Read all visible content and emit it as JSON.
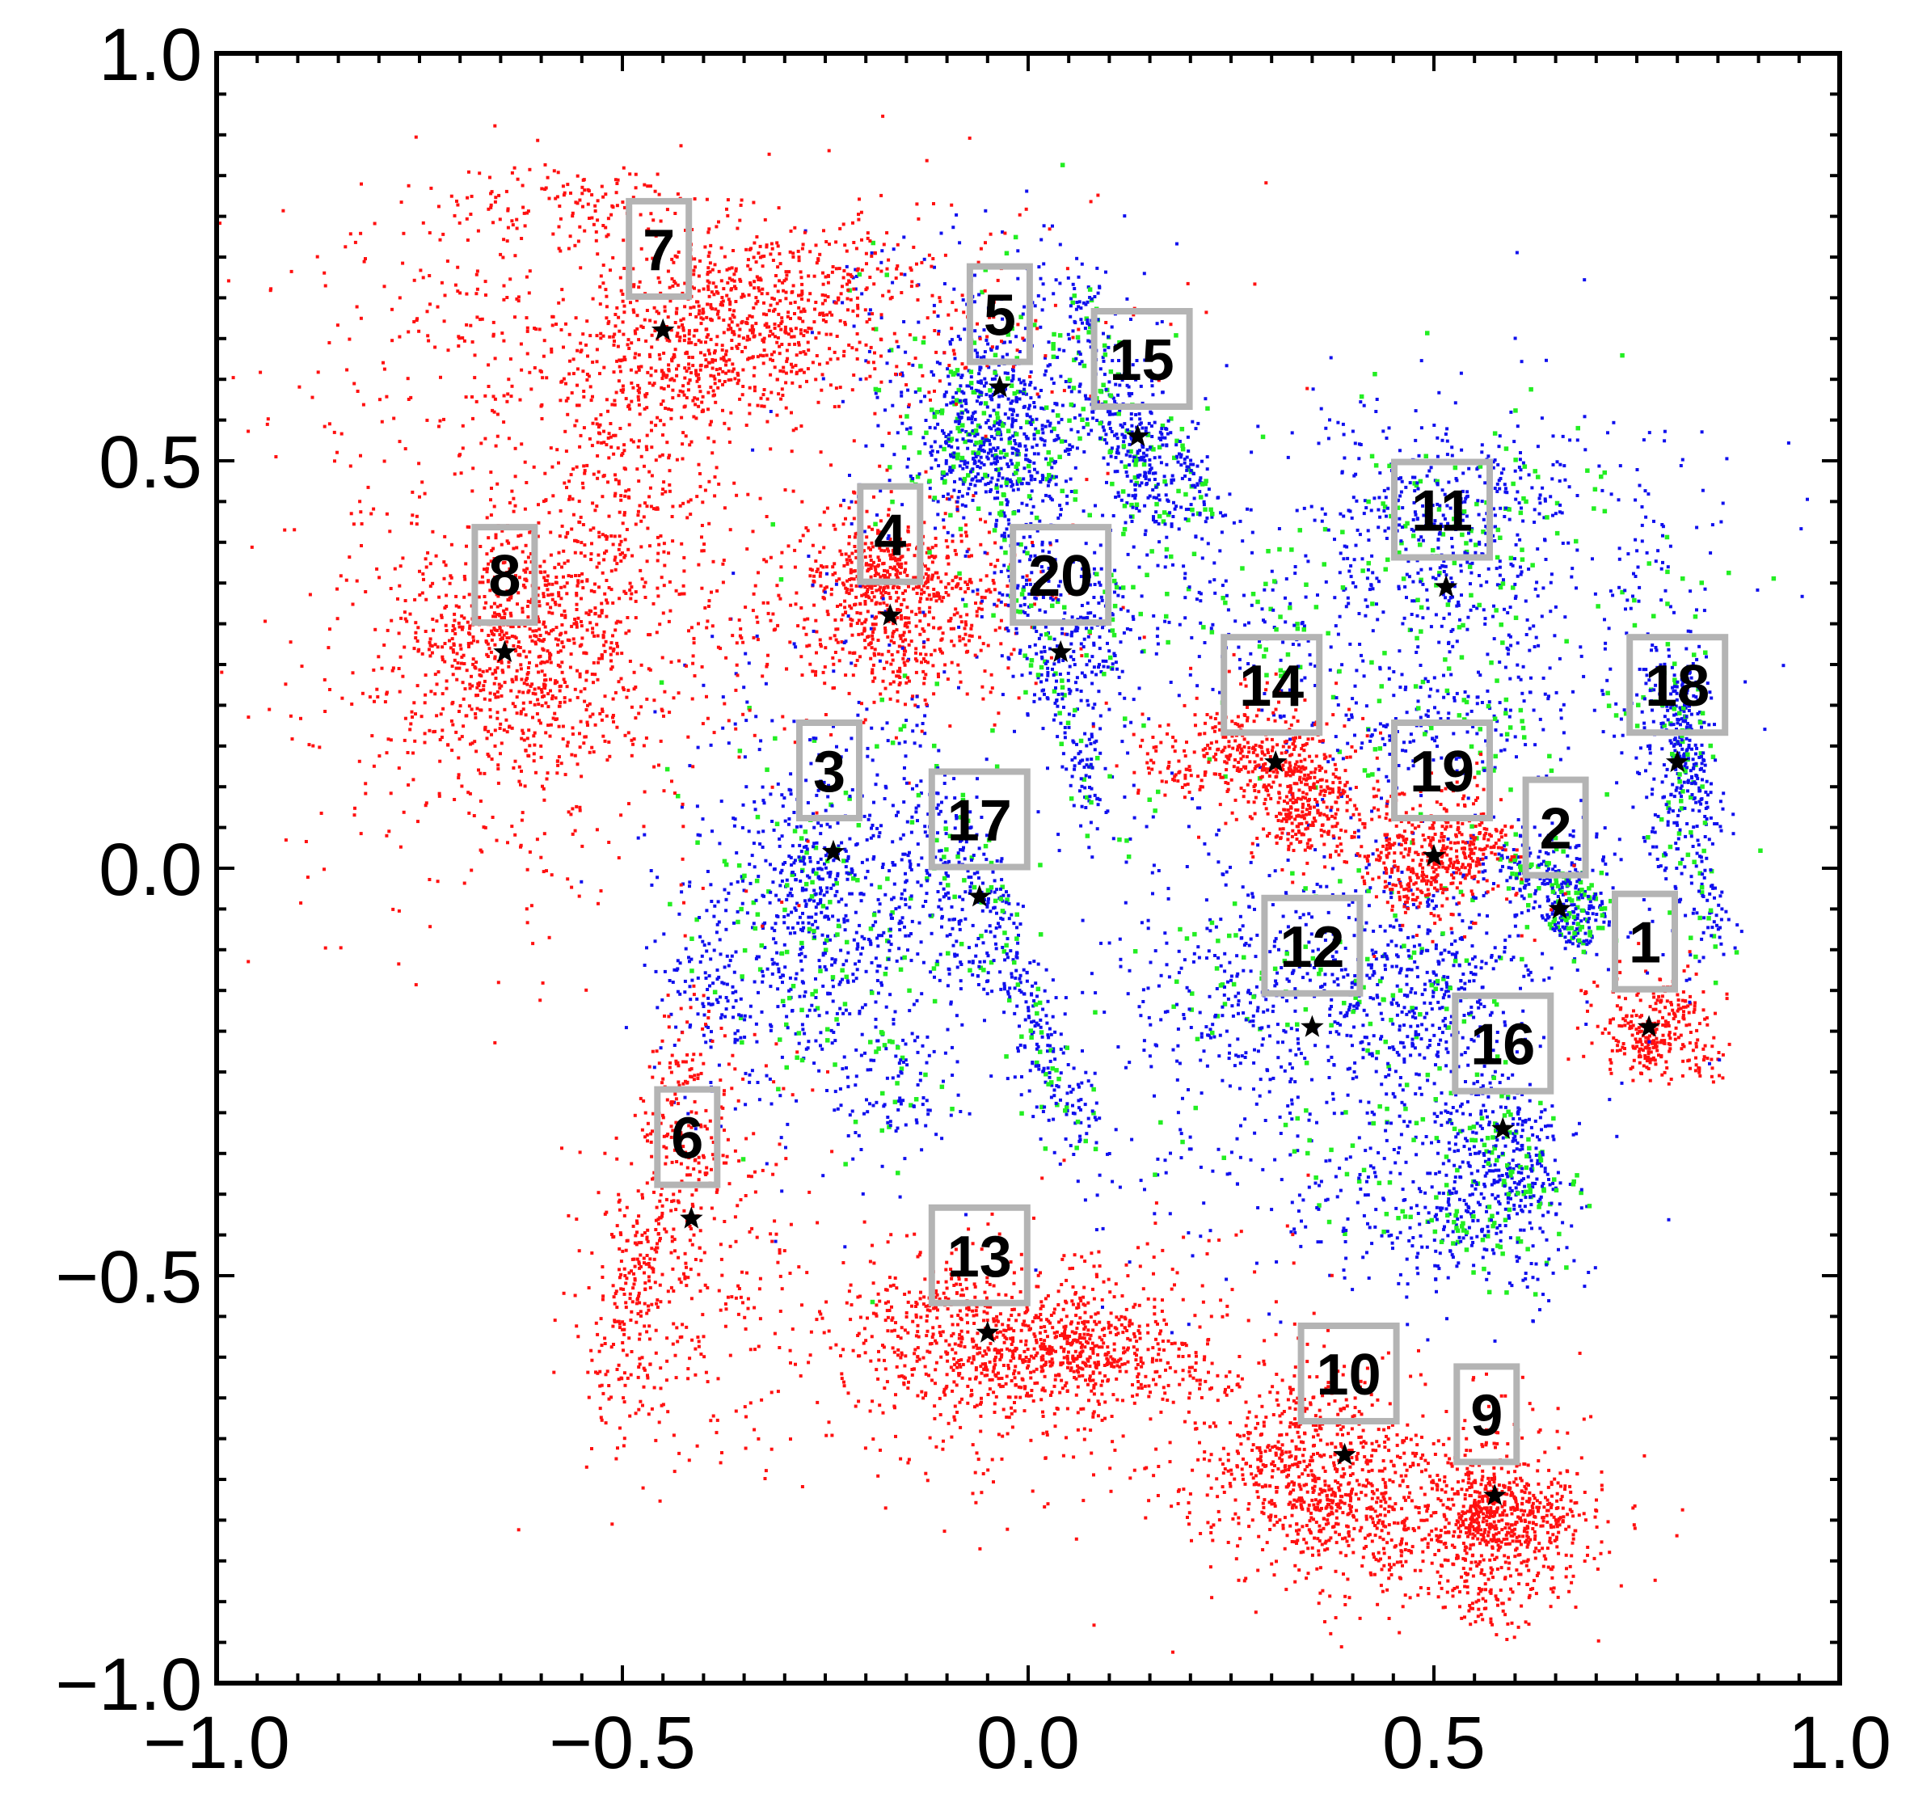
{
  "chart_data": {
    "type": "scatter",
    "title": "",
    "xlabel": "",
    "ylabel": "",
    "xlim": [
      -1.0,
      1.0
    ],
    "ylim": [
      -1.0,
      1.0
    ],
    "grid": false,
    "x_major_ticks": [
      -1.0,
      -0.5,
      0.0,
      0.5,
      1.0
    ],
    "y_major_ticks": [
      -1.0,
      -0.5,
      0.0,
      0.5,
      1.0
    ],
    "x_tick_labels": [
      "−1.0",
      "−0.5",
      "0.0",
      "0.5",
      "1.0"
    ],
    "y_tick_labels": [
      "−1.0",
      "−0.5",
      "0.0",
      "0.5",
      "1.0"
    ],
    "colors": {
      "red": "#ff1010",
      "blue": "#1010ee",
      "green": "#22ee22",
      "star": "#000000",
      "box": "#b4b4b4",
      "frame": "#000000"
    },
    "clusters": [
      {
        "label": "1",
        "center": [
          0.765,
          -0.192
        ],
        "star": [
          0.765,
          -0.195
        ],
        "label_pos": [
          0.76,
          -0.09
        ],
        "color": "red",
        "spread": [
          0.04,
          0.035
        ],
        "angle": -20,
        "n": 320,
        "green_frac": 0
      },
      {
        "label": "2",
        "center": [
          0.65,
          -0.03
        ],
        "star": [
          0.655,
          -0.05
        ],
        "label_pos": [
          0.65,
          0.05
        ],
        "color": "blue",
        "spread": [
          0.05,
          0.02
        ],
        "angle": -40,
        "n": 260,
        "green_frac": 0.35
      },
      {
        "label": "3",
        "center": [
          -0.25,
          -0.05
        ],
        "star": [
          -0.24,
          0.02
        ],
        "label_pos": [
          -0.245,
          0.12
        ],
        "color": "blue",
        "spread": [
          0.1,
          0.15
        ],
        "angle": 0,
        "n": 1100,
        "green_frac": 0.15
      },
      {
        "label": "4",
        "center": [
          -0.18,
          0.32
        ],
        "star": [
          -0.17,
          0.31
        ],
        "label_pos": [
          -0.17,
          0.41
        ],
        "color": "red",
        "spread": [
          0.1,
          0.07
        ],
        "angle": 0,
        "n": 850,
        "green_frac": 0
      },
      {
        "label": "5",
        "center": [
          -0.05,
          0.58
        ],
        "star": [
          -0.035,
          0.59
        ],
        "label_pos": [
          -0.035,
          0.68
        ],
        "color": "blue",
        "spread": [
          0.09,
          0.1
        ],
        "angle": 0,
        "n": 900,
        "green_frac": 0.2
      },
      {
        "label": "6",
        "center": [
          -0.43,
          -0.45
        ],
        "star": [
          -0.415,
          -0.43
        ],
        "label_pos": [
          -0.42,
          -0.33
        ],
        "color": "red",
        "spread": [
          0.06,
          0.14
        ],
        "angle": -15,
        "n": 600,
        "green_frac": 0
      },
      {
        "label": "7",
        "center": [
          -0.4,
          0.67
        ],
        "star": [
          -0.45,
          0.66
        ],
        "label_pos": [
          -0.455,
          0.76
        ],
        "color": "red",
        "spread": [
          0.24,
          0.08
        ],
        "angle": 0,
        "n": 1400,
        "green_frac": 0
      },
      {
        "label": "8",
        "center": [
          -0.63,
          0.28
        ],
        "star": [
          -0.645,
          0.265
        ],
        "label_pos": [
          -0.645,
          0.36
        ],
        "color": "red",
        "spread": [
          0.14,
          0.17
        ],
        "angle": 0,
        "n": 1500,
        "green_frac": 0
      },
      {
        "label": "9",
        "center": [
          0.57,
          -0.8
        ],
        "star": [
          0.575,
          -0.77
        ],
        "label_pos": [
          0.565,
          -0.67
        ],
        "color": "red",
        "spread": [
          0.08,
          0.06
        ],
        "angle": 0,
        "n": 800,
        "green_frac": 0
      },
      {
        "label": "10",
        "center": [
          0.38,
          -0.76
        ],
        "star": [
          0.39,
          -0.72
        ],
        "label_pos": [
          0.395,
          -0.62
        ],
        "color": "red",
        "spread": [
          0.11,
          0.07
        ],
        "angle": 0,
        "n": 900,
        "green_frac": 0
      },
      {
        "label": "11",
        "center": [
          0.52,
          0.38
        ],
        "star": [
          0.515,
          0.345
        ],
        "label_pos": [
          0.51,
          0.44
        ],
        "color": "blue",
        "spread": [
          0.17,
          0.12
        ],
        "angle": 0,
        "n": 1100,
        "green_frac": 0.2
      },
      {
        "label": "12",
        "center": [
          0.36,
          -0.17
        ],
        "star": [
          0.35,
          -0.195
        ],
        "label_pos": [
          0.35,
          -0.095
        ],
        "color": "blue",
        "spread": [
          0.16,
          0.14
        ],
        "angle": 0,
        "n": 1400,
        "green_frac": 0.12
      },
      {
        "label": "13",
        "center": [
          -0.03,
          -0.6
        ],
        "star": [
          -0.05,
          -0.57
        ],
        "label_pos": [
          -0.06,
          -0.475
        ],
        "color": "red",
        "spread": [
          0.18,
          0.08
        ],
        "angle": 0,
        "n": 1300,
        "green_frac": 0
      },
      {
        "label": "14",
        "center": [
          0.31,
          0.12
        ],
        "star": [
          0.305,
          0.13
        ],
        "label_pos": [
          0.3,
          0.225
        ],
        "color": "red",
        "spread": [
          0.07,
          0.05
        ],
        "angle": -30,
        "n": 650,
        "green_frac": 0
      },
      {
        "label": "15",
        "center": [
          0.13,
          0.51
        ],
        "star": [
          0.135,
          0.53
        ],
        "label_pos": [
          0.14,
          0.625
        ],
        "color": "blue",
        "spread": [
          0.035,
          0.1
        ],
        "angle": 20,
        "n": 500,
        "green_frac": 0.2
      },
      {
        "label": "16",
        "center": [
          0.57,
          -0.36
        ],
        "star": [
          0.585,
          -0.32
        ],
        "label_pos": [
          0.585,
          -0.215
        ],
        "color": "blue",
        "spread": [
          0.05,
          0.1
        ],
        "angle": 25,
        "n": 550,
        "green_frac": 0.25
      },
      {
        "label": "17",
        "center": [
          -0.06,
          -0.06
        ],
        "star": [
          -0.06,
          -0.035
        ],
        "label_pos": [
          -0.06,
          0.06
        ],
        "color": "blue",
        "spread": [
          0.03,
          0.17
        ],
        "angle": 25,
        "n": 500,
        "green_frac": 0.2
      },
      {
        "label": "18",
        "center": [
          0.8,
          0.12
        ],
        "star": [
          0.8,
          0.13
        ],
        "label_pos": [
          0.8,
          0.225
        ],
        "color": "blue",
        "spread": [
          0.03,
          0.12
        ],
        "angle": 8,
        "n": 500,
        "green_frac": 0.2
      },
      {
        "label": "19",
        "center": [
          0.5,
          0.02
        ],
        "star": [
          0.5,
          0.015
        ],
        "label_pos": [
          0.51,
          0.12
        ],
        "color": "red",
        "spread": [
          0.05,
          0.05
        ],
        "angle": -25,
        "n": 450,
        "green_frac": 0
      },
      {
        "label": "20",
        "center": [
          0.05,
          0.25
        ],
        "star": [
          0.04,
          0.265
        ],
        "label_pos": [
          0.04,
          0.36
        ],
        "color": "blue",
        "spread": [
          0.04,
          0.1
        ],
        "angle": 15,
        "n": 450,
        "green_frac": 0.15
      }
    ]
  }
}
